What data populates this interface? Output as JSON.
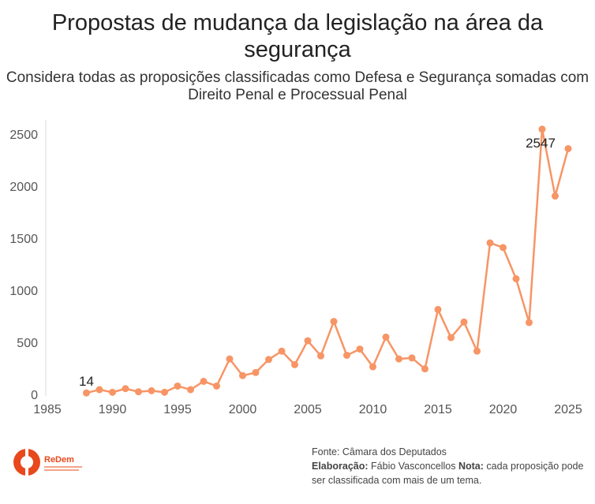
{
  "chart_data": {
    "type": "line",
    "title": "Propostas de mudança da legislação na área da segurança",
    "subtitle": "Considera todas as proposições classificadas como Defesa e Segurança somadas com Direito Penal e Processual Penal",
    "xlabel": "",
    "ylabel": "",
    "xlim": [
      1985,
      2026
    ],
    "ylim": [
      0,
      2620
    ],
    "xticks": [
      1985,
      1990,
      1995,
      2000,
      2005,
      2010,
      2015,
      2020,
      2025
    ],
    "yticks": [
      0,
      500,
      1000,
      1500,
      2000,
      2500
    ],
    "grid": false,
    "color": "#f79566",
    "x": [
      1988,
      1989,
      1990,
      1991,
      1992,
      1993,
      1994,
      1995,
      1996,
      1997,
      1998,
      1999,
      2000,
      2001,
      2002,
      2003,
      2004,
      2005,
      2006,
      2007,
      2008,
      2009,
      2010,
      2011,
      2012,
      2013,
      2014,
      2015,
      2016,
      2017,
      2018,
      2019,
      2020,
      2021,
      2022,
      2023,
      2024,
      2025
    ],
    "y": [
      14,
      45,
      20,
      55,
      25,
      35,
      20,
      80,
      45,
      125,
      80,
      340,
      180,
      210,
      335,
      415,
      285,
      515,
      370,
      700,
      375,
      435,
      265,
      550,
      340,
      350,
      245,
      815,
      545,
      695,
      415,
      1455,
      1410,
      1110,
      690,
      2547,
      1905,
      2360
    ],
    "data_labels": [
      {
        "x": 1988,
        "text": "14"
      },
      {
        "x": 2023,
        "text": "2547"
      }
    ]
  },
  "footer": {
    "source": "Fonte: Câmara dos Deputados",
    "credit_label": "Elaboração:",
    "credit": " Fábio Vasconcellos ",
    "note_label": "Nota:",
    "note": " cada proposição pode ser classificada com mais de um tema."
  },
  "logo": {
    "text": "ReDem",
    "color": "#e8481c"
  }
}
